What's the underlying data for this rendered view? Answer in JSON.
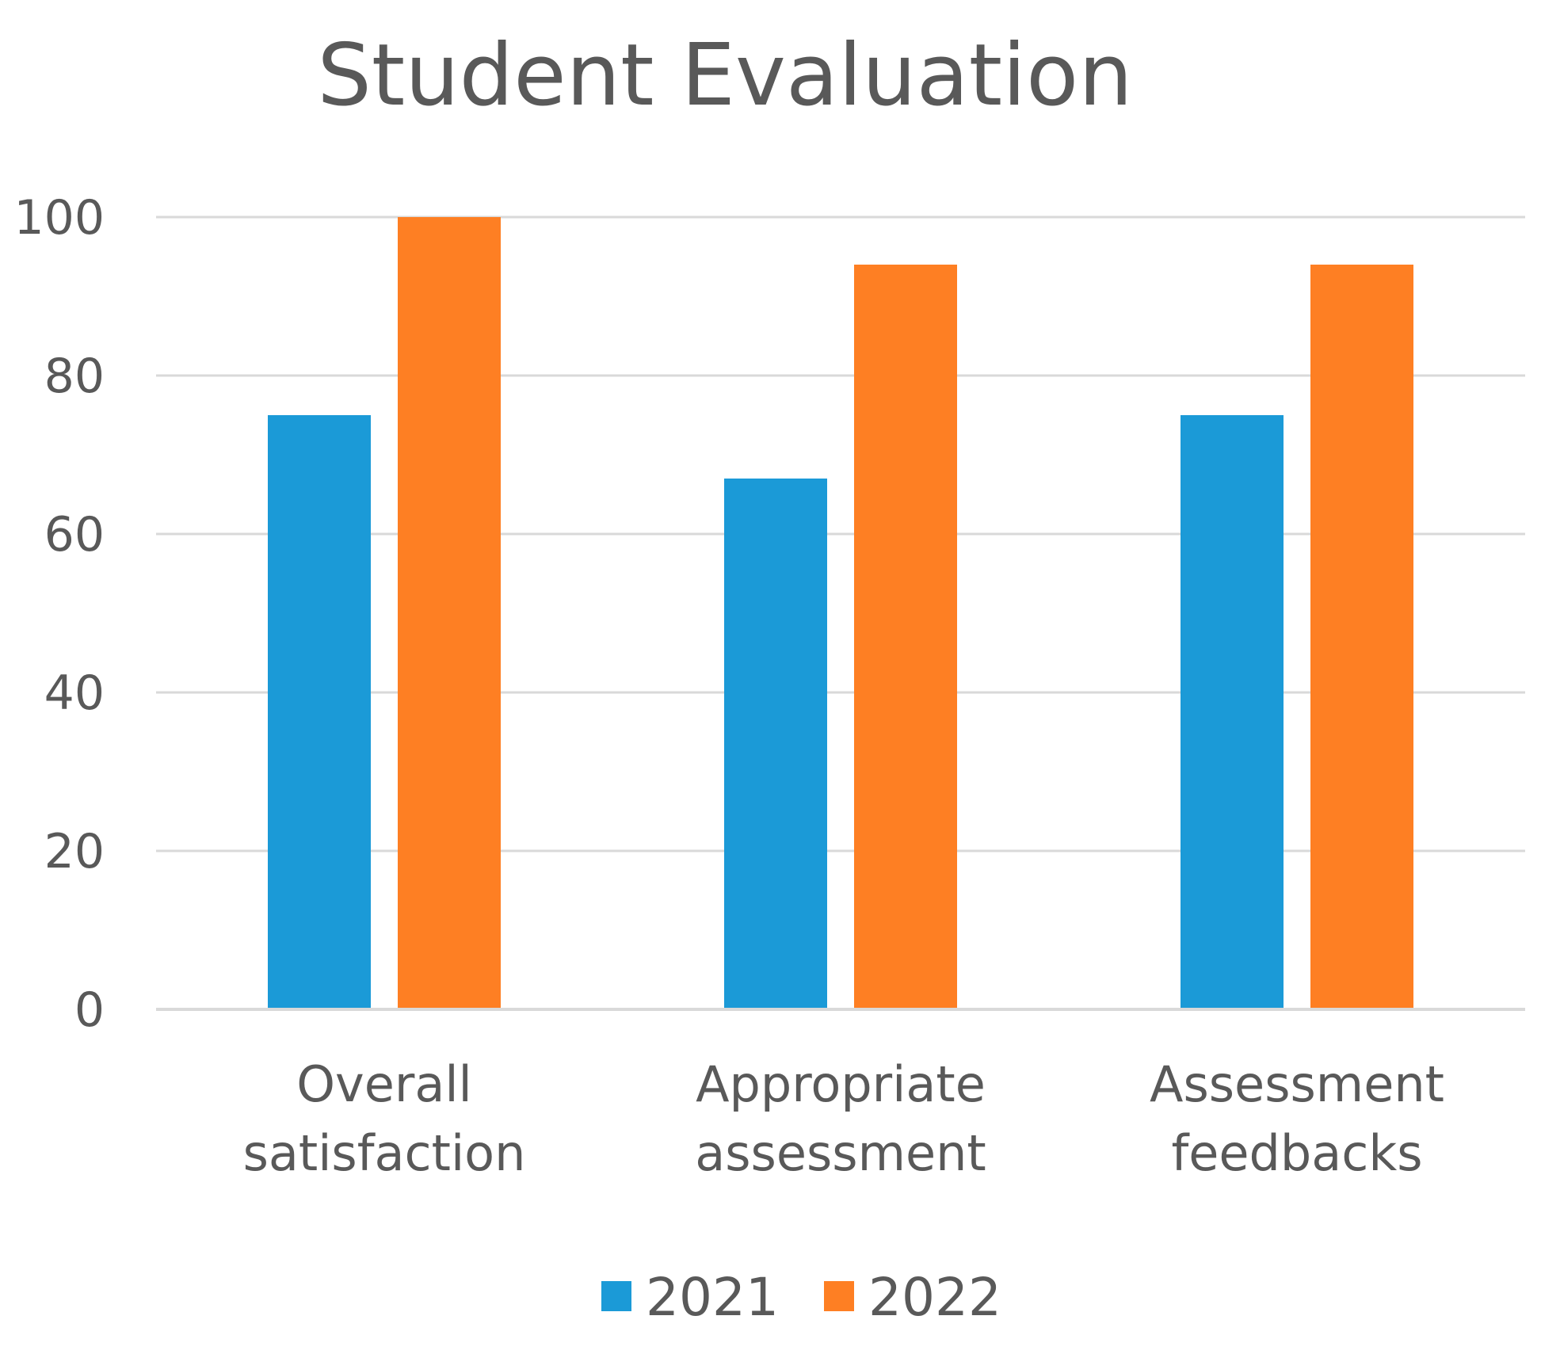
{
  "chart_data": {
    "type": "bar",
    "title": "Student Evaluation",
    "categories": [
      [
        "Overall",
        "satisfaction"
      ],
      [
        "Appropriate",
        "assessment"
      ],
      [
        "Assessment",
        "feedbacks"
      ]
    ],
    "series": [
      {
        "name": "2021",
        "color": "#1b9ad7",
        "values": [
          75,
          67,
          75
        ]
      },
      {
        "name": "2022",
        "color": "#fe7f23",
        "values": [
          100,
          94,
          94
        ]
      }
    ],
    "xlabel": "",
    "ylabel": "",
    "ylim": [
      0,
      100
    ],
    "yticks": [
      "0",
      "20",
      "40",
      "60",
      "80",
      "100"
    ],
    "grid": true,
    "legend_position": "bottom"
  }
}
